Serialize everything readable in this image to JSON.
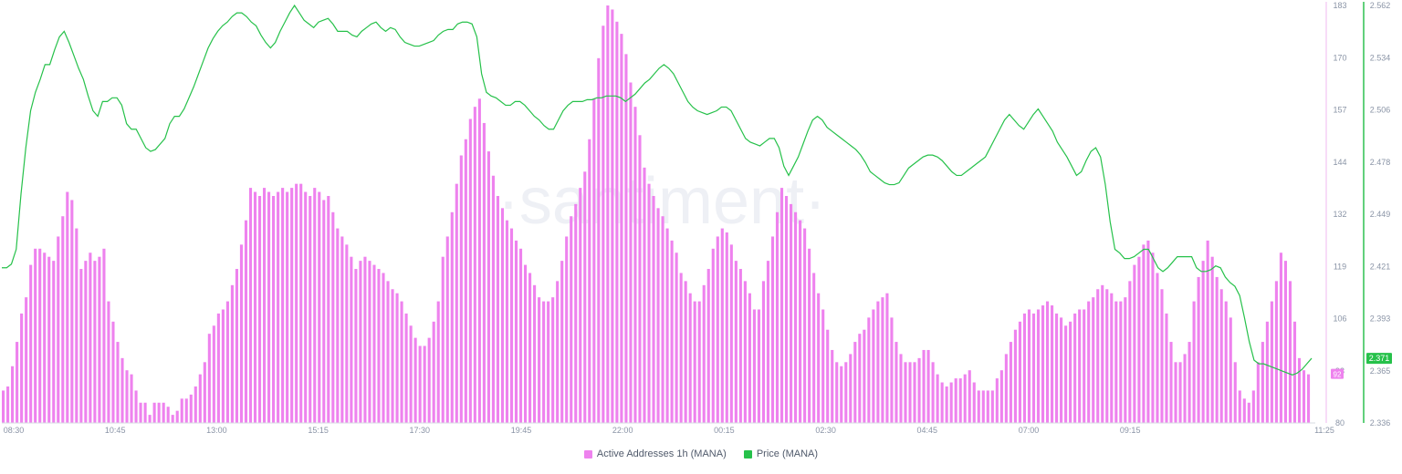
{
  "chart_data": {
    "type": "bar+line",
    "watermark": "·santiment·",
    "x_ticks": [
      "08:30",
      "10:45",
      "13:00",
      "15:15",
      "17:30",
      "19:45",
      "22:00",
      "00:15",
      "02:30",
      "04:45",
      "07:00",
      "09:15",
      "11:25"
    ],
    "left_axis": {
      "ticks": [
        "183",
        "170",
        "157",
        "144",
        "132",
        "119",
        "106",
        "93",
        "80"
      ],
      "ylim": [
        80,
        183
      ]
    },
    "right_axis": {
      "ticks": [
        "2.562",
        "2.534",
        "2.506",
        "2.478",
        "2.449",
        "2.421",
        "2.393",
        "2.365",
        "2.336"
      ],
      "ylim": [
        2.336,
        2.562
      ]
    },
    "series": [
      {
        "name": "Active Addresses 1h (MANA)",
        "type": "bar",
        "color": "#ee82ee",
        "last_label": "92",
        "values": [
          88,
          89,
          94,
          100,
          107,
          111,
          119,
          123,
          123,
          122,
          121,
          120,
          126,
          131,
          137,
          135,
          128,
          118,
          120,
          122,
          120,
          121,
          123,
          110,
          105,
          100,
          96,
          93,
          92,
          88,
          85,
          85,
          82,
          85,
          85,
          85,
          84,
          82,
          83,
          86,
          86,
          87,
          89,
          92,
          95,
          102,
          104,
          107,
          108,
          110,
          114,
          118,
          124,
          130,
          138,
          137,
          136,
          138,
          137,
          136,
          137,
          138,
          137,
          138,
          139,
          139,
          137,
          136,
          138,
          137,
          135,
          136,
          132,
          128,
          126,
          124,
          121,
          118,
          120,
          121,
          120,
          119,
          118,
          117,
          115,
          113,
          112,
          110,
          107,
          104,
          101,
          99,
          99,
          101,
          105,
          110,
          121,
          126,
          132,
          139,
          146,
          150,
          155,
          158,
          160,
          154,
          147,
          141,
          136,
          133,
          130,
          128,
          125,
          123,
          119,
          117,
          114,
          111,
          110,
          110,
          111,
          115,
          120,
          126,
          131,
          134,
          138,
          142,
          150,
          160,
          170,
          178,
          183,
          182,
          179,
          176,
          171,
          164,
          158,
          151,
          143,
          139,
          136,
          133,
          131,
          128,
          125,
          122,
          117,
          115,
          112,
          110,
          110,
          114,
          118,
          123,
          126,
          128,
          127,
          124,
          120,
          118,
          115,
          112,
          108,
          108,
          115,
          120,
          126,
          132,
          138,
          136,
          134,
          132,
          130,
          128,
          123,
          117,
          112,
          108,
          103,
          98,
          95,
          94,
          95,
          97,
          100,
          102,
          103,
          106,
          108,
          110,
          111,
          112,
          106,
          100,
          97,
          95,
          95,
          95,
          96,
          98,
          98,
          95,
          92,
          90,
          89,
          90,
          91,
          91,
          92,
          93,
          90,
          88,
          88,
          88,
          88,
          91,
          93,
          97,
          100,
          103,
          105,
          107,
          108,
          107,
          108,
          109,
          110,
          109,
          107,
          106,
          104,
          105,
          107,
          108,
          108,
          110,
          111,
          113,
          114,
          113,
          112,
          110,
          110,
          111,
          115,
          119,
          121,
          124,
          125,
          122,
          117,
          113,
          107,
          100,
          95,
          95,
          97,
          100,
          110,
          116,
          120,
          125,
          121,
          116,
          113,
          110,
          106,
          95,
          88,
          86,
          85,
          88,
          95,
          100,
          105,
          110,
          115,
          122,
          120,
          115,
          105,
          96,
          93,
          92
        ]
      },
      {
        "name": "Price (MANA)",
        "type": "line",
        "color": "#26c14a",
        "last_label": "2.371",
        "values": [
          2.42,
          2.42,
          2.422,
          2.43,
          2.46,
          2.485,
          2.505,
          2.515,
          2.522,
          2.53,
          2.53,
          2.538,
          2.545,
          2.548,
          2.542,
          2.535,
          2.528,
          2.522,
          2.513,
          2.505,
          2.502,
          2.51,
          2.51,
          2.512,
          2.512,
          2.508,
          2.498,
          2.495,
          2.495,
          2.49,
          2.485,
          2.483,
          2.484,
          2.487,
          2.49,
          2.498,
          2.502,
          2.502,
          2.506,
          2.512,
          2.518,
          2.525,
          2.532,
          2.539,
          2.544,
          2.548,
          2.551,
          2.553,
          2.556,
          2.558,
          2.558,
          2.556,
          2.553,
          2.551,
          2.546,
          2.542,
          2.539,
          2.542,
          2.548,
          2.553,
          2.558,
          2.562,
          2.558,
          2.554,
          2.552,
          2.55,
          2.553,
          2.554,
          2.555,
          2.552,
          2.548,
          2.548,
          2.548,
          2.546,
          2.545,
          2.548,
          2.55,
          2.552,
          2.553,
          2.55,
          2.548,
          2.55,
          2.549,
          2.545,
          2.542,
          2.541,
          2.54,
          2.54,
          2.541,
          2.542,
          2.543,
          2.546,
          2.548,
          2.549,
          2.549,
          2.552,
          2.553,
          2.553,
          2.552,
          2.545,
          2.525,
          2.515,
          2.513,
          2.512,
          2.51,
          2.508,
          2.508,
          2.51,
          2.51,
          2.508,
          2.505,
          2.502,
          2.5,
          2.497,
          2.495,
          2.495,
          2.5,
          2.505,
          2.508,
          2.51,
          2.51,
          2.51,
          2.511,
          2.511,
          2.512,
          2.512,
          2.513,
          2.513,
          2.513,
          2.512,
          2.51,
          2.512,
          2.514,
          2.517,
          2.52,
          2.522,
          2.525,
          2.528,
          2.53,
          2.528,
          2.525,
          2.52,
          2.515,
          2.51,
          2.507,
          2.505,
          2.504,
          2.503,
          2.504,
          2.505,
          2.507,
          2.507,
          2.505,
          2.5,
          2.495,
          2.49,
          2.488,
          2.487,
          2.486,
          2.488,
          2.49,
          2.49,
          2.485,
          2.475,
          2.47,
          2.475,
          2.48,
          2.487,
          2.494,
          2.5,
          2.502,
          2.5,
          2.496,
          2.494,
          2.492,
          2.49,
          2.488,
          2.486,
          2.484,
          2.481,
          2.477,
          2.472,
          2.47,
          2.468,
          2.466,
          2.465,
          2.465,
          2.466,
          2.47,
          2.474,
          2.476,
          2.478,
          2.48,
          2.481,
          2.481,
          2.48,
          2.478,
          2.475,
          2.472,
          2.47,
          2.47,
          2.472,
          2.474,
          2.476,
          2.478,
          2.48,
          2.485,
          2.49,
          2.495,
          2.5,
          2.503,
          2.5,
          2.497,
          2.495,
          2.499,
          2.503,
          2.506,
          2.502,
          2.498,
          2.494,
          2.488,
          2.484,
          2.48,
          2.475,
          2.47,
          2.472,
          2.478,
          2.483,
          2.485,
          2.48,
          2.465,
          2.445,
          2.43,
          2.428,
          2.425,
          2.425,
          2.426,
          2.428,
          2.43,
          2.43,
          2.425,
          2.42,
          2.418,
          2.42,
          2.423,
          2.426,
          2.426,
          2.426,
          2.426,
          2.42,
          2.418,
          2.418,
          2.419,
          2.421,
          2.42,
          2.415,
          2.412,
          2.41,
          2.405,
          2.393,
          2.38,
          2.37,
          2.368,
          2.368,
          2.367,
          2.366,
          2.365,
          2.364,
          2.363,
          2.362,
          2.363,
          2.365,
          2.368,
          2.371
        ]
      }
    ]
  }
}
